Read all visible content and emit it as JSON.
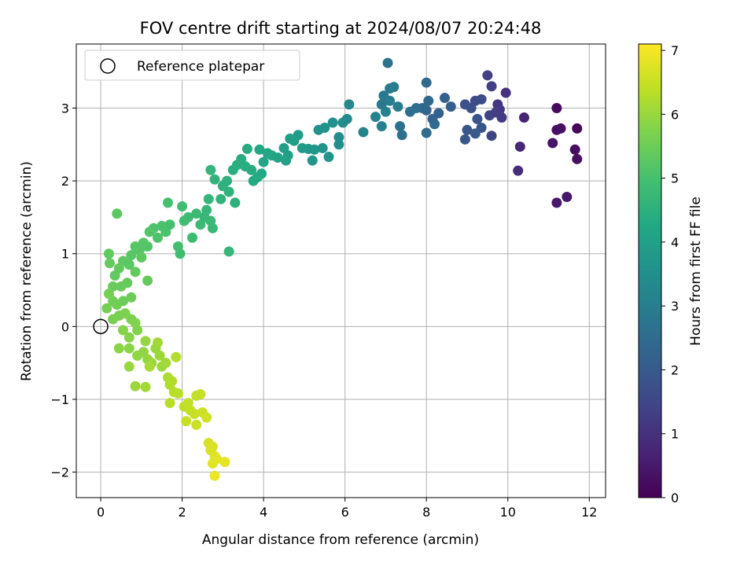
{
  "chart_data": {
    "type": "scatter",
    "title": "FOV centre drift starting at 2024/08/07 20:24:48",
    "xlabel": "Angular distance from reference (arcmin)",
    "ylabel": "Rotation from reference (arcmin)",
    "xlim": [
      -0.6,
      12.4
    ],
    "ylim": [
      -2.35,
      3.88
    ],
    "xticks": [
      0,
      2,
      4,
      6,
      8,
      10,
      12
    ],
    "yticks": [
      -2,
      -1,
      0,
      1,
      2,
      3
    ],
    "grid": true,
    "legend": {
      "placement": "upper-left",
      "entries": [
        "Reference platepar"
      ]
    },
    "colorbar": {
      "label": "Hours from first FF file",
      "range": [
        0,
        7.1
      ],
      "ticks": [
        0,
        1,
        2,
        3,
        4,
        5,
        6,
        7
      ],
      "colormap": "viridis"
    },
    "reference_point": {
      "x": 0,
      "y": 0,
      "name": "Reference platepar"
    },
    "points": [
      [
        11.7,
        2.72,
        0.1
      ],
      [
        11.2,
        3.0,
        0.2
      ],
      [
        11.65,
        2.43,
        0.25
      ],
      [
        11.7,
        2.3,
        0.3
      ],
      [
        11.2,
        2.7,
        0.3
      ],
      [
        11.3,
        2.72,
        0.35
      ],
      [
        11.1,
        2.52,
        0.4
      ],
      [
        11.45,
        1.78,
        0.45
      ],
      [
        11.2,
        1.7,
        0.5
      ],
      [
        10.4,
        2.87,
        0.7
      ],
      [
        10.3,
        2.47,
        0.8
      ],
      [
        10.25,
        2.14,
        0.9
      ],
      [
        9.95,
        3.21,
        1.0
      ],
      [
        9.75,
        3.05,
        1.1
      ],
      [
        9.8,
        2.98,
        1.15
      ],
      [
        9.85,
        2.87,
        1.2
      ],
      [
        9.6,
        3.3,
        1.3
      ],
      [
        9.5,
        3.45,
        1.35
      ],
      [
        9.55,
        2.9,
        1.4
      ],
      [
        9.6,
        2.62,
        1.45
      ],
      [
        9.7,
        2.94,
        1.3
      ],
      [
        9.2,
        3.1,
        1.6
      ],
      [
        9.35,
        3.12,
        1.65
      ],
      [
        9.1,
        3.0,
        1.7
      ],
      [
        8.95,
        3.05,
        1.8
      ],
      [
        9.25,
        2.85,
        1.85
      ],
      [
        9.0,
        2.7,
        1.9
      ],
      [
        8.95,
        2.57,
        1.95
      ],
      [
        9.35,
        2.73,
        1.9
      ],
      [
        9.2,
        2.65,
        2.0
      ],
      [
        8.6,
        3.02,
        2.1
      ],
      [
        8.45,
        3.14,
        2.15
      ],
      [
        8.3,
        2.93,
        2.2
      ],
      [
        8.15,
        2.85,
        2.25
      ],
      [
        8.0,
        2.97,
        2.3
      ],
      [
        7.9,
        3.0,
        2.35
      ],
      [
        8.05,
        3.1,
        2.4
      ],
      [
        8.0,
        3.35,
        2.4
      ],
      [
        7.75,
        3.0,
        2.5
      ],
      [
        7.6,
        2.95,
        2.55
      ],
      [
        8.2,
        2.78,
        2.45
      ],
      [
        8.0,
        2.66,
        2.5
      ],
      [
        7.4,
        2.63,
        2.6
      ],
      [
        7.35,
        2.75,
        2.65
      ],
      [
        7.05,
        3.62,
        2.7
      ],
      [
        6.9,
        3.05,
        2.8
      ],
      [
        6.95,
        3.17,
        2.85
      ],
      [
        7.1,
        3.27,
        2.9
      ],
      [
        7.2,
        3.29,
        2.95
      ],
      [
        7.3,
        3.02,
        3.0
      ],
      [
        7.1,
        3.1,
        3.0
      ],
      [
        7.0,
        2.95,
        3.05
      ],
      [
        6.9,
        2.75,
        3.1
      ],
      [
        6.75,
        2.88,
        3.15
      ],
      [
        6.45,
        2.67,
        3.2
      ],
      [
        6.1,
        3.05,
        3.3
      ],
      [
        6.05,
        2.85,
        3.35
      ],
      [
        5.95,
        2.8,
        3.4
      ],
      [
        5.85,
        2.6,
        3.45
      ],
      [
        5.85,
        2.5,
        3.5
      ],
      [
        5.7,
        2.8,
        3.55
      ],
      [
        5.5,
        2.73,
        3.6
      ],
      [
        5.35,
        2.7,
        3.6
      ],
      [
        5.6,
        2.33,
        3.65
      ],
      [
        5.45,
        2.45,
        3.65
      ],
      [
        5.25,
        2.43,
        3.7
      ],
      [
        5.2,
        2.28,
        3.75
      ],
      [
        5.1,
        2.44,
        3.8
      ],
      [
        4.95,
        2.45,
        3.85
      ],
      [
        4.85,
        2.63,
        3.9
      ],
      [
        4.75,
        2.55,
        3.9
      ],
      [
        4.65,
        2.58,
        3.95
      ],
      [
        4.6,
        2.35,
        4.0
      ],
      [
        4.55,
        2.28,
        4.05
      ],
      [
        4.5,
        2.45,
        4.0
      ],
      [
        4.35,
        2.32,
        4.1
      ],
      [
        4.2,
        2.35,
        4.15
      ],
      [
        4.1,
        2.38,
        4.2
      ],
      [
        4.0,
        2.26,
        4.2
      ],
      [
        3.95,
        2.1,
        4.25
      ],
      [
        3.9,
        2.43,
        4.25
      ],
      [
        3.85,
        2.05,
        4.3
      ],
      [
        3.75,
        2.0,
        4.3
      ],
      [
        3.7,
        2.15,
        4.35
      ],
      [
        3.6,
        2.44,
        4.35
      ],
      [
        3.55,
        2.2,
        4.4
      ],
      [
        3.45,
        2.3,
        4.4
      ],
      [
        3.35,
        2.22,
        4.45
      ],
      [
        3.25,
        2.15,
        4.45
      ],
      [
        3.3,
        1.7,
        4.5
      ],
      [
        3.1,
        2.0,
        4.5
      ],
      [
        3.15,
        1.85,
        4.55
      ],
      [
        3.0,
        1.93,
        4.55
      ],
      [
        2.95,
        1.75,
        4.6
      ],
      [
        2.8,
        2.02,
        4.6
      ],
      [
        2.7,
        2.15,
        4.65
      ],
      [
        2.65,
        1.75,
        4.65
      ],
      [
        2.6,
        1.6,
        4.7
      ],
      [
        2.55,
        1.5,
        4.7
      ],
      [
        2.7,
        1.45,
        4.75
      ],
      [
        2.75,
        1.35,
        4.75
      ],
      [
        3.15,
        1.03,
        4.7
      ],
      [
        2.45,
        1.4,
        4.8
      ],
      [
        2.35,
        1.55,
        4.8
      ],
      [
        2.25,
        1.22,
        4.85
      ],
      [
        2.15,
        1.5,
        4.85
      ],
      [
        2.05,
        1.45,
        4.9
      ],
      [
        1.95,
        1.0,
        4.9
      ],
      [
        1.9,
        1.1,
        4.95
      ],
      [
        2.0,
        1.65,
        4.9
      ],
      [
        1.65,
        1.7,
        5.0
      ],
      [
        1.7,
        1.4,
        5.0
      ],
      [
        1.6,
        1.3,
        5.05
      ],
      [
        1.5,
        1.38,
        5.05
      ],
      [
        1.4,
        1.22,
        5.1
      ],
      [
        1.3,
        1.35,
        5.1
      ],
      [
        1.2,
        1.3,
        5.15
      ],
      [
        1.15,
        1.1,
        5.15
      ],
      [
        1.05,
        1.15,
        5.2
      ],
      [
        0.95,
        1.05,
        5.2
      ],
      [
        0.85,
        1.1,
        5.25
      ],
      [
        0.75,
        0.98,
        5.25
      ],
      [
        0.7,
        0.85,
        5.3
      ],
      [
        0.55,
        0.9,
        5.3
      ],
      [
        0.45,
        0.8,
        5.35
      ],
      [
        0.35,
        0.7,
        5.35
      ],
      [
        0.4,
        1.55,
        5.3
      ],
      [
        0.85,
        0.75,
        5.4
      ],
      [
        0.65,
        0.6,
        5.4
      ],
      [
        0.5,
        0.55,
        5.45
      ],
      [
        0.3,
        0.55,
        5.45
      ],
      [
        0.22,
        0.87,
        5.4
      ],
      [
        0.2,
        1.0,
        5.35
      ],
      [
        1.0,
        0.95,
        5.3
      ],
      [
        1.15,
        0.63,
        5.4
      ],
      [
        0.75,
        0.4,
        5.5
      ],
      [
        0.55,
        0.35,
        5.5
      ],
      [
        0.4,
        0.3,
        5.55
      ],
      [
        0.3,
        0.35,
        5.55
      ],
      [
        0.2,
        0.45,
        5.6
      ],
      [
        0.15,
        0.25,
        5.6
      ],
      [
        0.3,
        0.1,
        5.65
      ],
      [
        0.45,
        0.15,
        5.65
      ],
      [
        0.6,
        0.18,
        5.7
      ],
      [
        0.75,
        0.1,
        5.7
      ],
      [
        0.85,
        0.05,
        5.75
      ],
      [
        0.9,
        -0.05,
        5.75
      ],
      [
        0.7,
        -0.15,
        5.8
      ],
      [
        0.55,
        -0.05,
        5.8
      ],
      [
        0.45,
        -0.3,
        5.85
      ],
      [
        0.7,
        -0.3,
        5.85
      ],
      [
        0.9,
        -0.4,
        5.9
      ],
      [
        1.05,
        -0.35,
        5.9
      ],
      [
        1.1,
        -0.2,
        5.95
      ],
      [
        1.15,
        -0.45,
        5.95
      ],
      [
        1.25,
        -0.5,
        6.0
      ],
      [
        1.35,
        -0.3,
        6.0
      ],
      [
        1.45,
        -0.4,
        6.05
      ],
      [
        1.5,
        -0.55,
        6.05
      ],
      [
        1.6,
        -0.5,
        6.1
      ],
      [
        1.4,
        -0.22,
        6.1
      ],
      [
        0.7,
        -0.55,
        6.0
      ],
      [
        0.85,
        -0.82,
        6.05
      ],
      [
        1.1,
        -0.83,
        6.1
      ],
      [
        1.2,
        -0.55,
        6.15
      ],
      [
        1.65,
        -0.7,
        6.2
      ],
      [
        1.7,
        -0.8,
        6.25
      ],
      [
        1.75,
        -0.75,
        6.25
      ],
      [
        1.8,
        -0.9,
        6.3
      ],
      [
        1.7,
        -1.05,
        6.35
      ],
      [
        1.85,
        -0.42,
        6.3
      ],
      [
        1.9,
        -0.92,
        6.35
      ],
      [
        2.05,
        -1.1,
        6.4
      ],
      [
        2.15,
        -1.05,
        6.45
      ],
      [
        2.2,
        -1.15,
        6.45
      ],
      [
        2.3,
        -1.2,
        6.5
      ],
      [
        2.1,
        -1.3,
        6.5
      ],
      [
        2.35,
        -1.35,
        6.55
      ],
      [
        2.45,
        -0.93,
        6.5
      ],
      [
        2.5,
        -1.18,
        6.55
      ],
      [
        2.65,
        -1.6,
        6.65
      ],
      [
        2.7,
        -1.7,
        6.7
      ],
      [
        2.75,
        -1.65,
        6.7
      ],
      [
        2.8,
        -1.78,
        6.75
      ],
      [
        2.75,
        -1.88,
        6.8
      ],
      [
        2.85,
        -1.82,
        6.8
      ],
      [
        2.8,
        -2.05,
        6.9
      ],
      [
        3.05,
        -1.86,
        6.85
      ],
      [
        2.6,
        -1.25,
        6.6
      ],
      [
        2.35,
        -0.95,
        6.45
      ]
    ]
  }
}
